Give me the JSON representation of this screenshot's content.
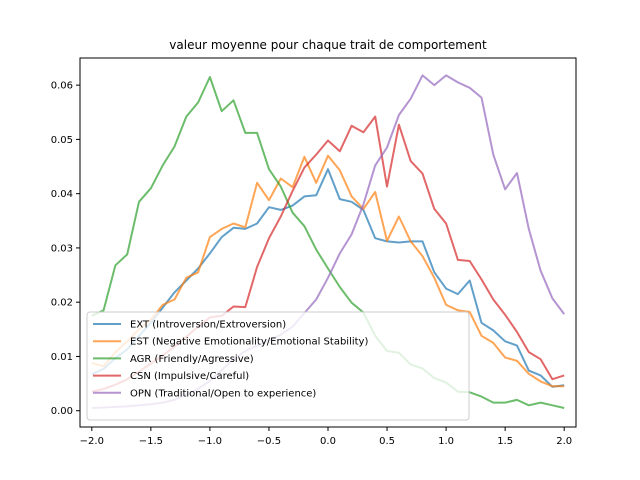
{
  "chart_data": {
    "type": "line",
    "title": "valeur moyenne pour chaque trait de comportement",
    "xlabel": "",
    "ylabel": "",
    "xlim": [
      -2.1,
      2.1
    ],
    "ylim": [
      -0.003,
      0.065
    ],
    "x_ticks": [
      -2.0,
      -1.5,
      -1.0,
      -0.5,
      0.0,
      0.5,
      1.0,
      1.5,
      2.0
    ],
    "x_tick_labels": [
      "−2.0",
      "−1.5",
      "−1.0",
      "−0.5",
      "0.0",
      "0.5",
      "1.0",
      "1.5",
      "2.0"
    ],
    "y_ticks": [
      0.0,
      0.01,
      0.02,
      0.03,
      0.04,
      0.05,
      0.06
    ],
    "y_tick_labels": [
      "0.00",
      "0.01",
      "0.02",
      "0.03",
      "0.04",
      "0.05",
      "0.06"
    ],
    "grid": false,
    "legend_position": "lower-left",
    "x": [
      -2.0,
      -1.9,
      -1.8,
      -1.7,
      -1.6,
      -1.5,
      -1.4,
      -1.3,
      -1.2,
      -1.1,
      -1.0,
      -0.9,
      -0.8,
      -0.7,
      -0.6,
      -0.5,
      -0.4,
      -0.3,
      -0.2,
      -0.1,
      0.0,
      0.1,
      0.2,
      0.3,
      0.4,
      0.5,
      0.6,
      0.7,
      0.8,
      0.9,
      1.0,
      1.1,
      1.2,
      1.3,
      1.4,
      1.5,
      1.6,
      1.7,
      1.8,
      1.9,
      2.0
    ],
    "series": [
      {
        "name": "EXT (Introversion/Extroversion)",
        "color": "#1f77b4",
        "values": [
          0.0067,
          0.0077,
          0.0097,
          0.0113,
          0.0138,
          0.0162,
          0.019,
          0.0218,
          0.024,
          0.0262,
          0.029,
          0.032,
          0.0337,
          0.0335,
          0.0345,
          0.0375,
          0.037,
          0.0378,
          0.0395,
          0.0397,
          0.0445,
          0.039,
          0.0385,
          0.037,
          0.0318,
          0.0312,
          0.031,
          0.0312,
          0.0312,
          0.0255,
          0.0225,
          0.0215,
          0.024,
          0.0162,
          0.0148,
          0.0128,
          0.012,
          0.0074,
          0.0065,
          0.0044,
          0.0047
        ]
      },
      {
        "name": "EST (Negative Emotionality/Emotional Stability)",
        "color": "#ff7f0e",
        "values": [
          0.0088,
          0.0082,
          0.0108,
          0.0128,
          0.015,
          0.0168,
          0.0195,
          0.0205,
          0.0245,
          0.0255,
          0.032,
          0.0335,
          0.0345,
          0.0338,
          0.042,
          0.0388,
          0.0428,
          0.0412,
          0.0468,
          0.042,
          0.047,
          0.0443,
          0.0395,
          0.0372,
          0.0403,
          0.0313,
          0.0358,
          0.0312,
          0.0285,
          0.0245,
          0.0195,
          0.0185,
          0.0182,
          0.0138,
          0.0125,
          0.0098,
          0.0092,
          0.0068,
          0.0054,
          0.0045,
          0.0045
        ]
      },
      {
        "name": "AGR (Friendly/Agressive)",
        "color": "#2ca02c",
        "values": [
          0.0175,
          0.0185,
          0.0268,
          0.0288,
          0.0385,
          0.041,
          0.0452,
          0.0487,
          0.0542,
          0.0568,
          0.0615,
          0.0552,
          0.0572,
          0.0512,
          0.0512,
          0.0445,
          0.0413,
          0.0365,
          0.034,
          0.0297,
          0.0262,
          0.0228,
          0.0199,
          0.0181,
          0.0138,
          0.011,
          0.0107,
          0.0085,
          0.0078,
          0.006,
          0.0052,
          0.0035,
          0.0034,
          0.0026,
          0.0015,
          0.0015,
          0.002,
          0.001,
          0.0015,
          0.001,
          0.0005
        ]
      },
      {
        "name": "CSN (Impulsive/Careful)",
        "color": "#d62728",
        "values": [
          0.0035,
          0.004,
          0.0048,
          0.0058,
          0.0072,
          0.0087,
          0.0102,
          0.0118,
          0.0136,
          0.0155,
          0.0172,
          0.0175,
          0.0192,
          0.0191,
          0.0265,
          0.0318,
          0.0358,
          0.0405,
          0.0448,
          0.0472,
          0.0498,
          0.0478,
          0.0525,
          0.0513,
          0.0542,
          0.0413,
          0.0527,
          0.046,
          0.0437,
          0.0372,
          0.0345,
          0.0278,
          0.0276,
          0.0242,
          0.0205,
          0.0177,
          0.0145,
          0.0108,
          0.0095,
          0.0058,
          0.0065
        ]
      },
      {
        "name": "OPN (Traditional/Open to experience)",
        "color": "#9467bd",
        "values": [
          0.0005,
          0.0006,
          0.0007,
          0.0008,
          0.001,
          0.0012,
          0.0015,
          0.002,
          0.003,
          0.004,
          0.0055,
          0.0075,
          0.0095,
          0.011,
          0.012,
          0.013,
          0.014,
          0.0155,
          0.018,
          0.0205,
          0.0245,
          0.029,
          0.0325,
          0.038,
          0.0452,
          0.0485,
          0.0545,
          0.0575,
          0.0618,
          0.06,
          0.0618,
          0.0605,
          0.0595,
          0.0577,
          0.0472,
          0.0408,
          0.0438,
          0.0335,
          0.0258,
          0.0207,
          0.0178
        ]
      }
    ]
  }
}
